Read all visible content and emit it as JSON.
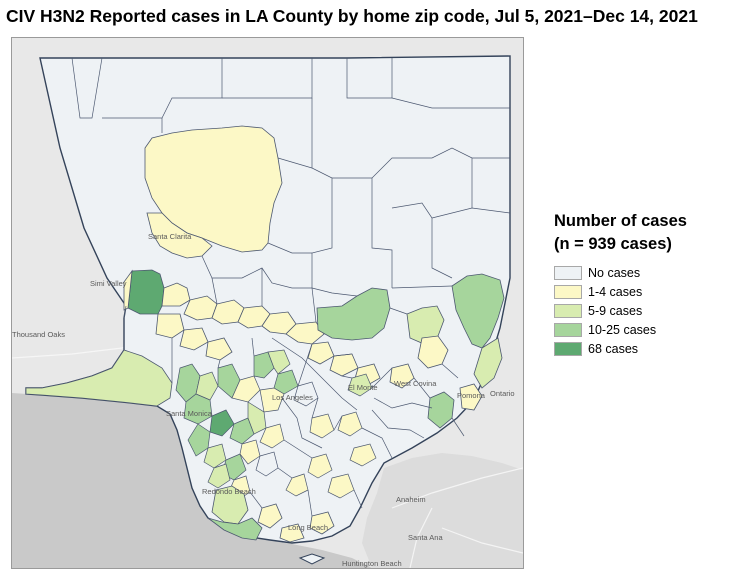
{
  "title": "CIV H3N2 Reported cases in LA County by home zip code, Jul 5, 2021–Dec 14, 2021",
  "legend": {
    "title_line1": "Number of cases",
    "title_line2": "(n = 939 cases)",
    "items": [
      {
        "label": "No cases",
        "color": "#eef2f5"
      },
      {
        "label": "1-4 cases",
        "color": "#fcf8c6"
      },
      {
        "label": "5-9 cases",
        "color": "#d8ecb0"
      },
      {
        "label": "10-25 cases",
        "color": "#a6d59c"
      },
      {
        "label": "68 cases",
        "color": "#5ea971"
      }
    ]
  },
  "map": {
    "colors": {
      "background": "#e8e8e8",
      "ocean": "#c9c9c9",
      "county_border": "#34435a",
      "zip_border": "#4c5870"
    },
    "places": {
      "santa_clarita": "Santa Clarita",
      "simi_valley": "Simi Valley",
      "thousand_oaks": "Thousand Oaks",
      "santa_monica": "Santa Monica",
      "los_angeles": "Los Angeles",
      "el_monte": "El Monte",
      "west_covina": "West Covina",
      "pomona": "Pomona",
      "ontario": "Ontario",
      "redondo_beach": "Redondo Beach",
      "long_beach": "Long Beach",
      "anaheim": "Anaheim",
      "santa_ana": "Santa Ana",
      "huntington_beach": "Huntington Beach"
    }
  }
}
